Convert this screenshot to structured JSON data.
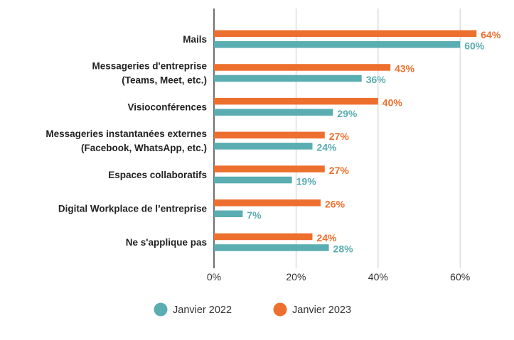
{
  "chart_data": {
    "type": "bar",
    "orientation": "horizontal",
    "categories": [
      [
        "Mails"
      ],
      [
        "Messageries d'entreprise",
        "(Teams, Meet, etc.)"
      ],
      [
        "Visioconférences"
      ],
      [
        "Messageries instantanées externes",
        "(Facebook, WhatsApp, etc.)"
      ],
      [
        "Espaces collaboratifs"
      ],
      [
        "Digital Workplace de l’entreprise"
      ],
      [
        "Ne s'applique pas"
      ]
    ],
    "series": [
      {
        "name": "Janvier 2023",
        "color": "#ed6f2d",
        "values": [
          64,
          43,
          40,
          27,
          27,
          26,
          24
        ],
        "labels": [
          "64%",
          "43%",
          "40%",
          "27%",
          "27%",
          "26%",
          "24%"
        ]
      },
      {
        "name": "Janvier 2022",
        "color": "#5aadb1",
        "values": [
          60,
          36,
          29,
          24,
          19,
          7,
          28
        ],
        "labels": [
          "60%",
          "36%",
          "29%",
          "24%",
          "19%",
          "7%",
          "28%"
        ]
      }
    ],
    "xticks": [
      "0%",
      "20%",
      "40%",
      "60%"
    ],
    "xtick_values": [
      0,
      20,
      40,
      60
    ],
    "xlim": [
      0,
      70
    ],
    "grid": true,
    "legend": {
      "placement": "bottom",
      "items": [
        "Janvier 2022",
        "Janvier 2023"
      ],
      "colors": [
        "#5aadb1",
        "#ed6f2d"
      ]
    }
  }
}
